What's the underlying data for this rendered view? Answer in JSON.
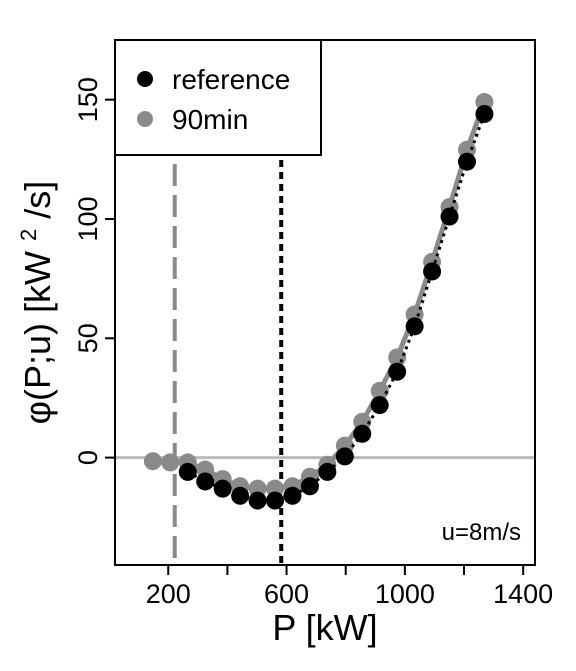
{
  "chart_data": {
    "type": "scatter",
    "xlabel": "P [kW]",
    "ylabel": "φ(P;u) [kW²/s]",
    "ylabel_main": "φ(P;u) [kW",
    "ylabel_sup": "2",
    "ylabel_tail": "/s]",
    "xlim": [
      20,
      1440
    ],
    "ylim": [
      -45,
      175
    ],
    "xticks": [
      200,
      600,
      1000,
      1400
    ],
    "xtick_labels": [
      "200",
      "600",
      "1000",
      "1400"
    ],
    "xticks_minor": [
      400,
      800,
      1200
    ],
    "yticks": [
      0,
      50,
      100,
      150
    ],
    "ytick_labels": [
      "0",
      "50",
      "100",
      "150"
    ],
    "grid": false,
    "legend_position": "top-left",
    "hline": {
      "y": 0,
      "color": "#bbbbbb"
    },
    "annotation": "u=8m/s",
    "series": [
      {
        "name": "90min",
        "color": "#8a8a8a",
        "line_style": "solid",
        "vline_x": 222,
        "x": [
          148,
          207,
          266,
          325,
          384,
          443,
          502,
          561,
          620,
          679,
          738,
          797,
          856,
          915,
          974,
          1033,
          1092,
          1151,
          1210,
          1269
        ],
        "y": [
          -1.5,
          -2,
          -2,
          -5,
          -9,
          -12,
          -13,
          -13,
          -12,
          -8,
          -3,
          5,
          15,
          28,
          42,
          60,
          82,
          105,
          129,
          149
        ]
      },
      {
        "name": "reference",
        "color": "#000000",
        "line_style": "dotted",
        "vline_x": 582,
        "x": [
          266,
          325,
          384,
          443,
          502,
          561,
          620,
          679,
          738,
          797,
          856,
          915,
          974,
          1033,
          1092,
          1151,
          1210,
          1269
        ],
        "y": [
          -6,
          -10,
          -13,
          -16,
          -18,
          -18,
          -16,
          -12,
          -6,
          0.5,
          10,
          22,
          36,
          55,
          78,
          101,
          124,
          144
        ]
      }
    ],
    "legend_order": [
      "reference",
      "90min"
    ],
    "colors": {
      "ref": "#000000",
      "m90": "#8a8a8a",
      "zero_line": "#bbbbbb"
    }
  }
}
